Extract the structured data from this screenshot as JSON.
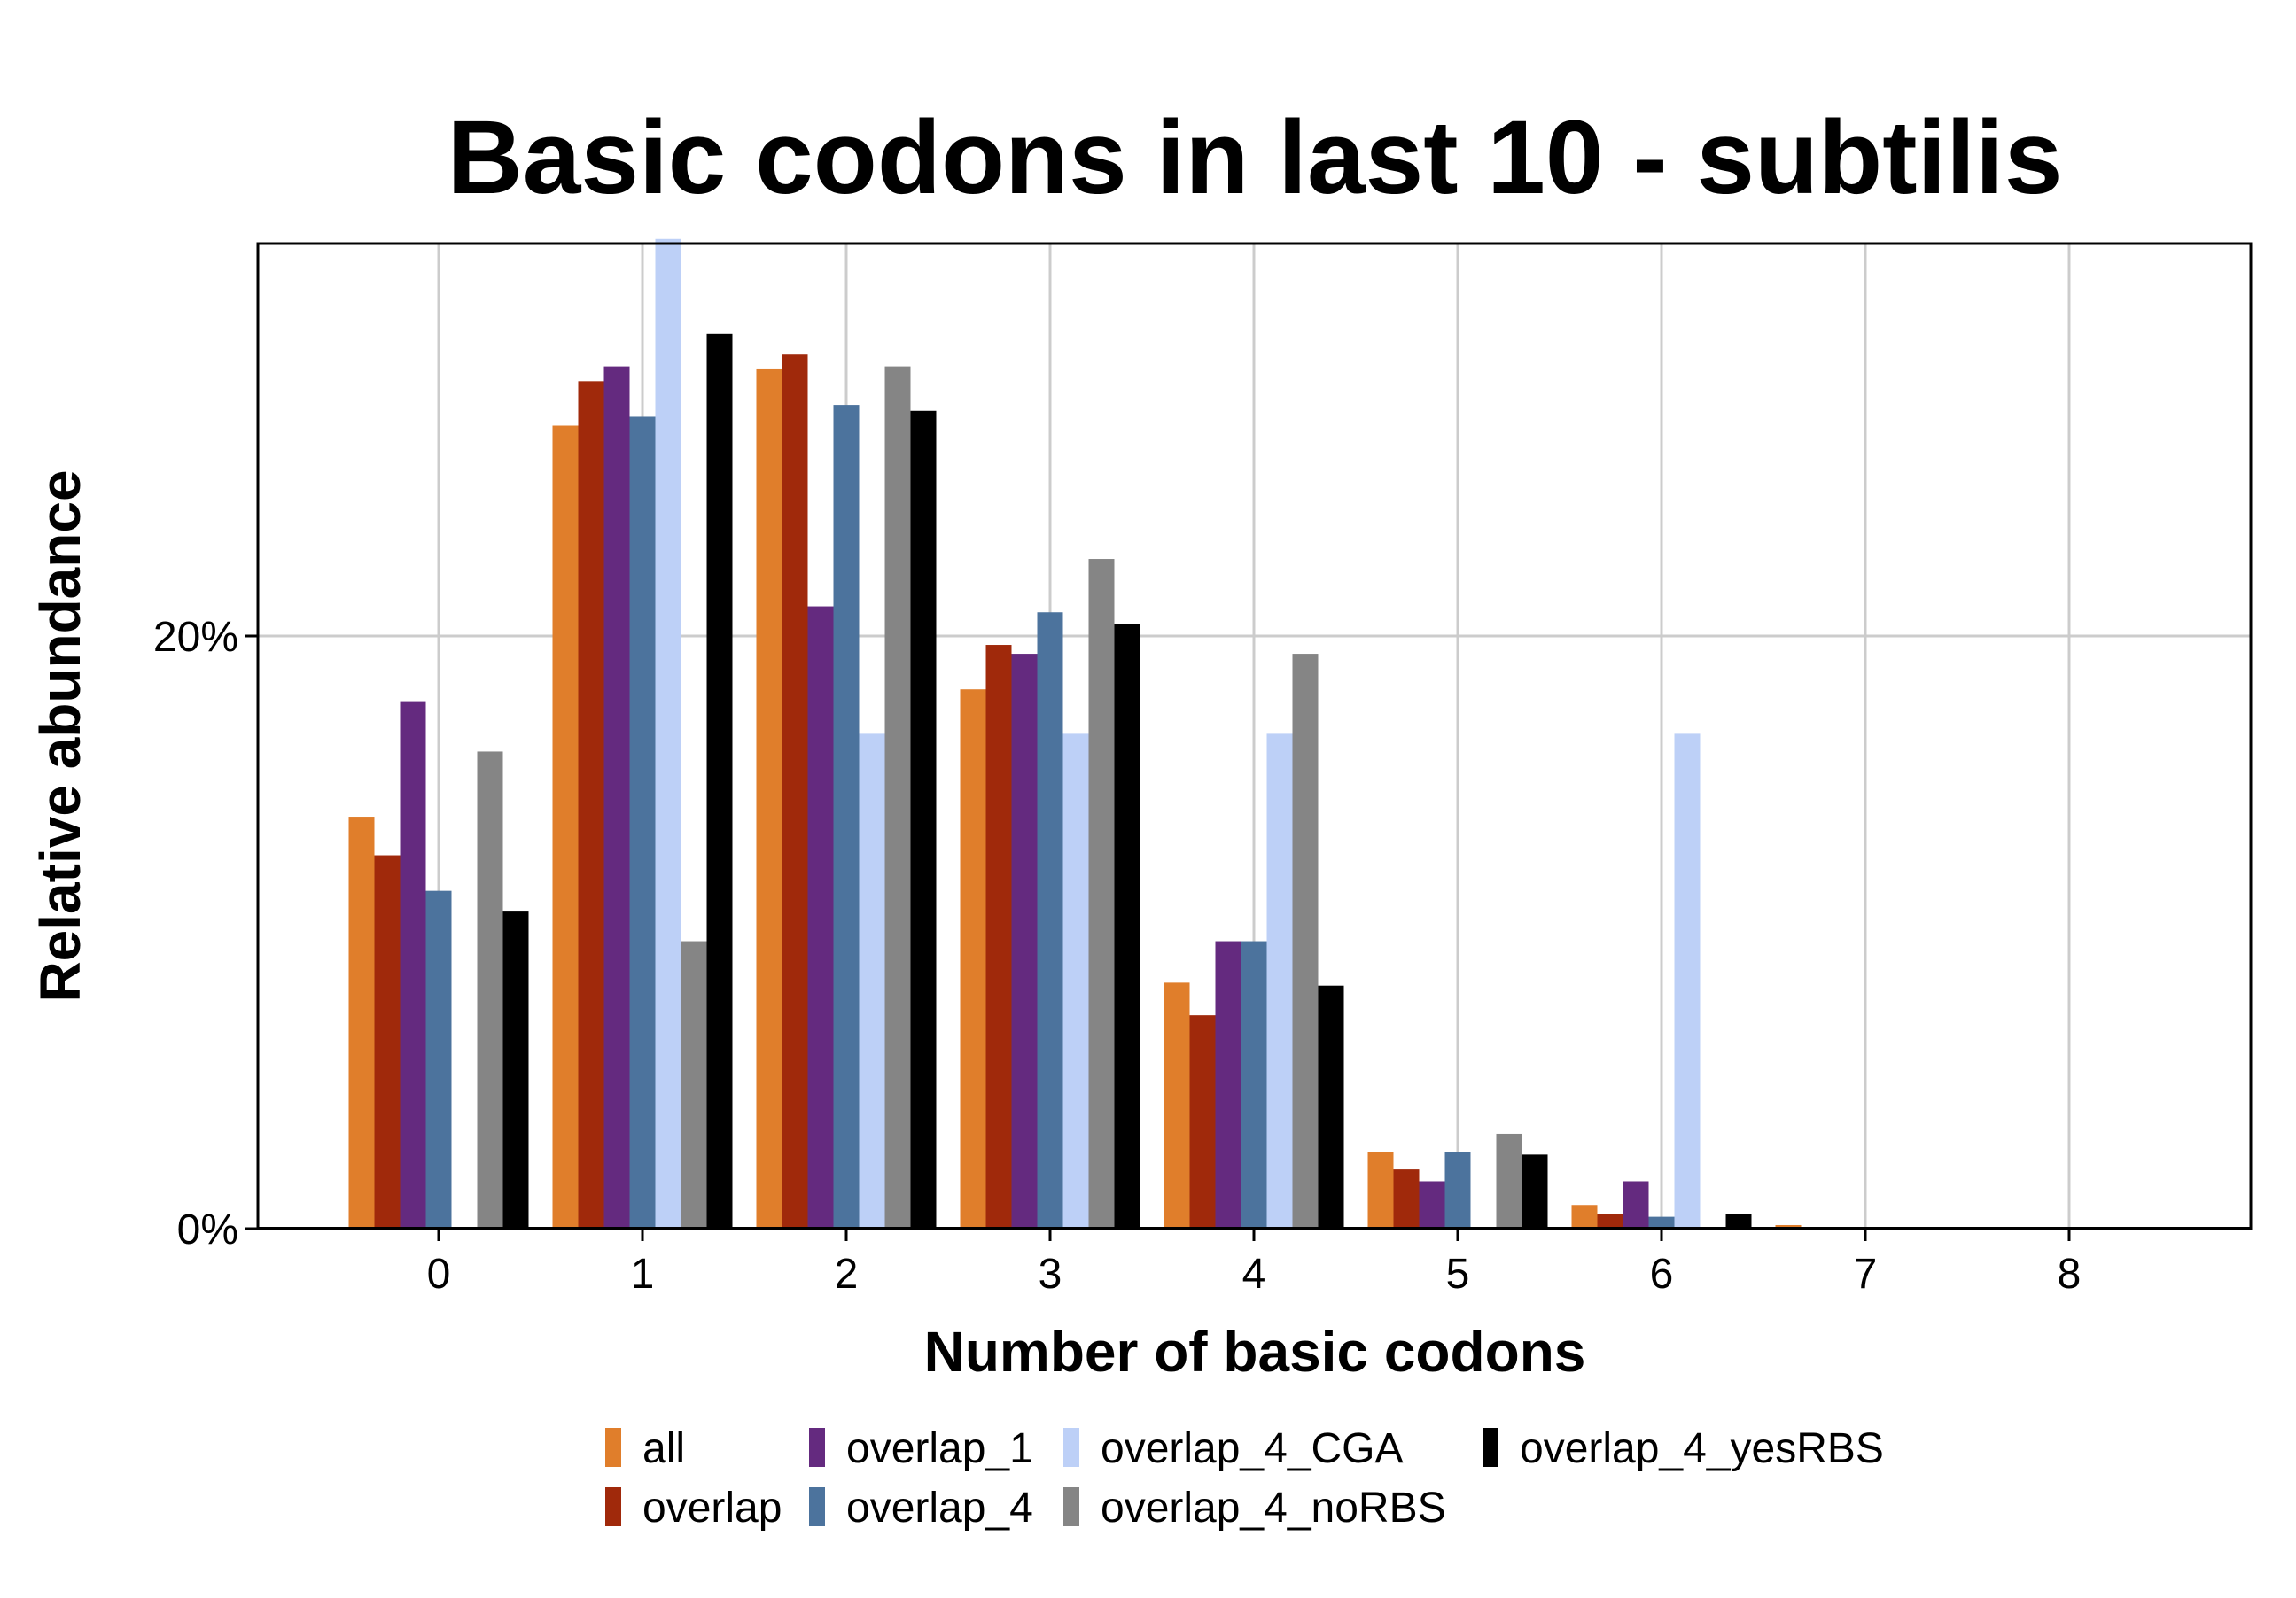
{
  "chart_data": {
    "type": "bar",
    "title": "Basic codons in last 10 - subtilis",
    "xlabel": "Number of basic codons",
    "ylabel": "Relative abundance",
    "categories": [
      "0",
      "1",
      "2",
      "3",
      "4",
      "5",
      "6",
      "7",
      "8"
    ],
    "y_ticks": [
      {
        "value": 0,
        "label": "0%"
      },
      {
        "value": 20,
        "label": "20%"
      }
    ],
    "ylim": [
      0,
      33.4
    ],
    "grid": true,
    "legend_position": "bottom",
    "series": [
      {
        "name": "all",
        "color": "#e07e2b",
        "values": [
          13.9,
          27.1,
          29.0,
          18.2,
          8.3,
          2.6,
          0.8,
          0.12,
          0
        ]
      },
      {
        "name": "overlap",
        "color": "#a0290b",
        "values": [
          12.6,
          28.6,
          29.5,
          19.7,
          7.2,
          2.0,
          0.5,
          0,
          0
        ]
      },
      {
        "name": "overlap_1",
        "color": "#642a7f",
        "values": [
          17.8,
          29.1,
          21.0,
          19.4,
          9.7,
          1.6,
          1.6,
          0,
          0
        ]
      },
      {
        "name": "overlap_4",
        "color": "#4c739d",
        "values": [
          11.4,
          27.4,
          27.8,
          20.8,
          9.7,
          2.6,
          0.4,
          0,
          0
        ]
      },
      {
        "name": "overlap_4_CGA",
        "color": "#bdd0f7",
        "values": [
          0,
          33.4,
          16.7,
          16.7,
          16.7,
          0,
          16.7,
          0,
          0
        ]
      },
      {
        "name": "overlap_4_noRBS",
        "color": "#858585",
        "values": [
          16.1,
          9.7,
          29.1,
          22.6,
          19.4,
          3.2,
          0,
          0,
          0
        ]
      },
      {
        "name": "overlap_4_yesRBS",
        "color": "#000000",
        "values": [
          10.7,
          30.2,
          27.6,
          20.4,
          8.2,
          2.5,
          0.5,
          0,
          0
        ]
      }
    ]
  }
}
